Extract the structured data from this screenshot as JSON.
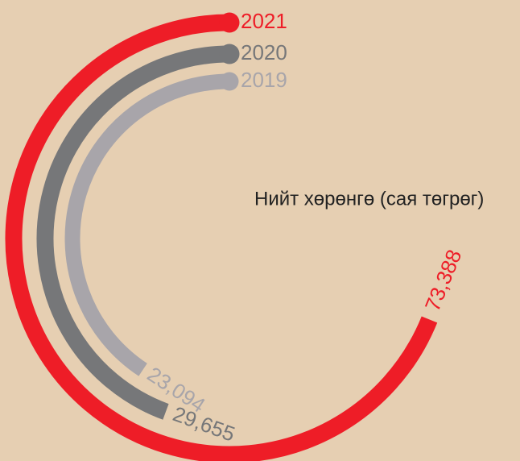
{
  "chart_data": {
    "type": "radial_bar",
    "title": "Нийт хөрөнгө (сая төгрөг)",
    "categories": [
      "2021",
      "2020",
      "2019"
    ],
    "values": [
      73388,
      29655,
      23094
    ],
    "value_labels": [
      "73,388",
      "29,655",
      "23,094"
    ],
    "colors": [
      "#ee1d27",
      "#767779",
      "#a8a5aa"
    ]
  }
}
